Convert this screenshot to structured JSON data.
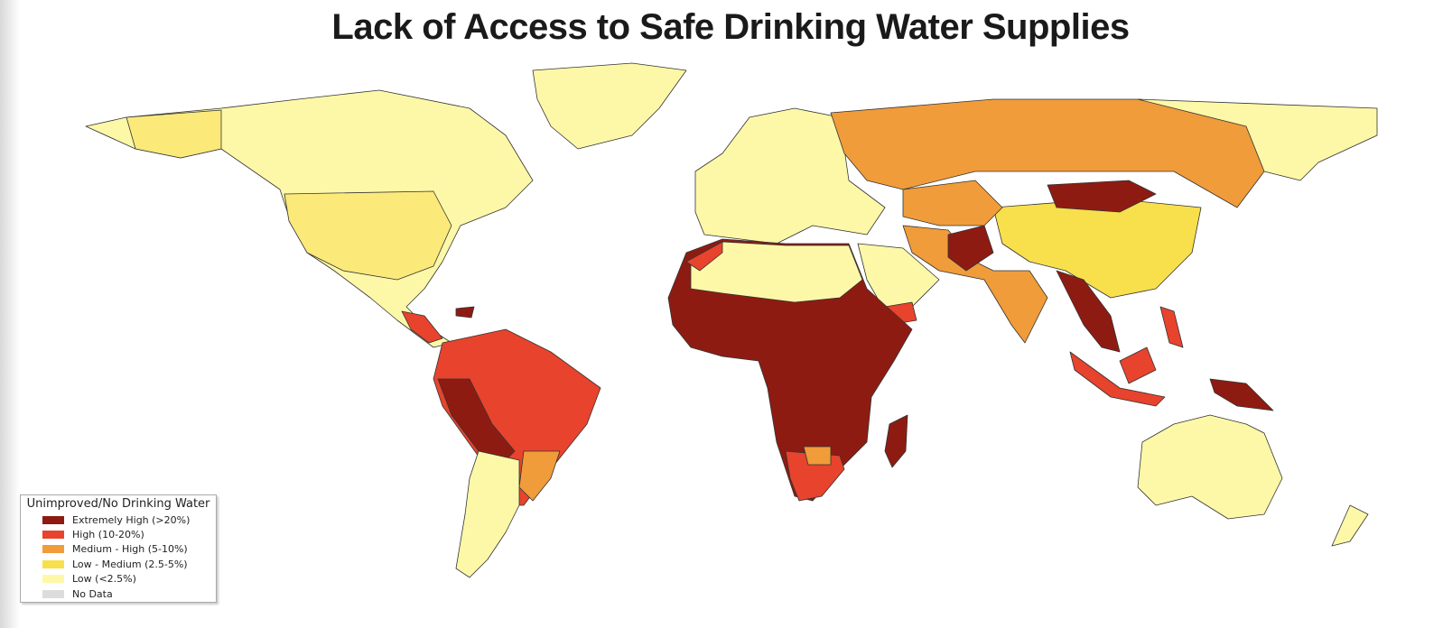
{
  "title": "Lack of Access to Safe Drinking Water Supplies",
  "legend": {
    "title": "Unimproved/No Drinking Water",
    "items": [
      {
        "label": "Extremely High (>20%)",
        "color": "#8e1b12"
      },
      {
        "label": "High (10-20%)",
        "color": "#e8432c"
      },
      {
        "label": "Medium - High (5-10%)",
        "color": "#f09c3a"
      },
      {
        "label": "Low - Medium (2.5-5%)",
        "color": "#f8df4c"
      },
      {
        "label": "Low (<2.5%)",
        "color": "#fdf8a8"
      },
      {
        "label": "No Data",
        "color": "#dcdcdc"
      }
    ]
  }
}
